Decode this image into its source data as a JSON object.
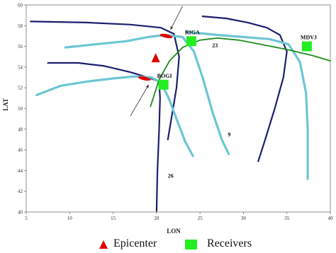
{
  "chart_data": {
    "type": "line",
    "title": "",
    "xlabel": "LON",
    "ylabel": "LAT",
    "xlim": [
      5,
      40
    ],
    "ylim": [
      40,
      60
    ],
    "xticks": [
      "5",
      "10",
      "15",
      "20",
      "25",
      "30",
      "35",
      "40"
    ],
    "yticks": [
      "40",
      "42",
      "44",
      "46",
      "48",
      "50",
      "52",
      "54",
      "56",
      "58",
      "60"
    ],
    "grid": false,
    "colors": {
      "dark": "#1b1f6e",
      "light": "#6cc6d4",
      "green": "#1e8a1e",
      "epicenter": "#e00000",
      "receiver": "#22ee22"
    },
    "series": [
      {
        "style": "dark",
        "points": [
          [
            5.5,
            58.4
          ],
          [
            12,
            58.3
          ],
          [
            17,
            58.1
          ],
          [
            20.5,
            57.8
          ],
          [
            22,
            57.2
          ],
          [
            22.6,
            55
          ],
          [
            22.3,
            52
          ],
          [
            21.8,
            49.5
          ],
          [
            21.3,
            47
          ]
        ]
      },
      {
        "style": "light",
        "points": [
          [
            9.5,
            55.9
          ],
          [
            13,
            56.2
          ],
          [
            16.5,
            56.5
          ],
          [
            19,
            56.9
          ],
          [
            21,
            57.1
          ],
          [
            23,
            56.9
          ],
          [
            24.3,
            55.5
          ],
          [
            25.3,
            53
          ],
          [
            26.5,
            49.5
          ],
          [
            27.5,
            47
          ],
          [
            28.3,
            45.6
          ]
        ]
      },
      {
        "style": "dark",
        "points": [
          [
            25.3,
            58.9
          ],
          [
            28,
            58.7
          ],
          [
            30.5,
            58.3
          ],
          [
            32.7,
            57.8
          ],
          [
            34.2,
            57.1
          ],
          [
            35,
            55.5
          ],
          [
            34.6,
            53
          ],
          [
            33.6,
            50
          ],
          [
            32.5,
            47
          ],
          [
            31.7,
            44.9
          ]
        ]
      },
      {
        "style": "light",
        "points": [
          [
            23.5,
            57.4
          ],
          [
            27,
            57.1
          ],
          [
            30,
            56.9
          ],
          [
            33,
            56.7
          ],
          [
            35.2,
            56.2
          ],
          [
            36.5,
            54.5
          ],
          [
            37.2,
            51.5
          ],
          [
            37.4,
            48
          ],
          [
            37.4,
            43.2
          ]
        ]
      },
      {
        "style": "dark",
        "points": [
          [
            7.5,
            54.4
          ],
          [
            11,
            54.4
          ],
          [
            14,
            54.1
          ],
          [
            17,
            53.5
          ],
          [
            19,
            53
          ],
          [
            20.3,
            52.6
          ],
          [
            20.4,
            51
          ],
          [
            20.3,
            48
          ],
          [
            20.1,
            44
          ],
          [
            20,
            40.1
          ]
        ]
      },
      {
        "style": "light",
        "points": [
          [
            6.2,
            51.3
          ],
          [
            9,
            52.2
          ],
          [
            12,
            52.6
          ],
          [
            15,
            52.9
          ],
          [
            17.5,
            53.1
          ],
          [
            19.4,
            53
          ],
          [
            20.5,
            52.5
          ],
          [
            21.4,
            51
          ],
          [
            22.3,
            49
          ],
          [
            23.3,
            46.8
          ],
          [
            24.2,
            45.4
          ]
        ]
      },
      {
        "style": "green",
        "points": [
          [
            19.3,
            50.2
          ],
          [
            20.3,
            52.8
          ],
          [
            21.5,
            54.6
          ],
          [
            23,
            55.9
          ],
          [
            25,
            56.6
          ],
          [
            27,
            56.8
          ],
          [
            29.5,
            56.6
          ],
          [
            32,
            56.2
          ],
          [
            35,
            55.7
          ],
          [
            38,
            55.1
          ],
          [
            40,
            54.6
          ]
        ]
      }
    ],
    "curve_labels": [
      {
        "text": "23",
        "x": 26.4,
        "y": 55.9
      },
      {
        "text": "9",
        "x": 28.2,
        "y": 47.3
      },
      {
        "text": "26",
        "x": 21.3,
        "y": 43.3
      }
    ],
    "epicenter_marks": [
      {
        "x": 21.1,
        "y": 57.0
      },
      {
        "x": 18.6,
        "y": 52.9
      }
    ],
    "arrows": [
      {
        "from": [
          23,
          59.9
        ],
        "to": [
          21.6,
          57.6
        ]
      },
      {
        "from": [
          17,
          49.3
        ],
        "to": [
          19.1,
          52.3
        ]
      }
    ],
    "epicenter": {
      "x": 19.9,
      "y": 54.8
    },
    "receivers": [
      {
        "name": "RIGA",
        "x": 24,
        "y": 56.5
      },
      {
        "name": "BOGI",
        "x": 20.8,
        "y": 52.3
      },
      {
        "name": "MDVJ",
        "x": 37.3,
        "y": 56.0
      }
    ],
    "legend": {
      "epicenter_label": "Epicenter",
      "receivers_label": "Receivers",
      "position": "bottom"
    }
  }
}
